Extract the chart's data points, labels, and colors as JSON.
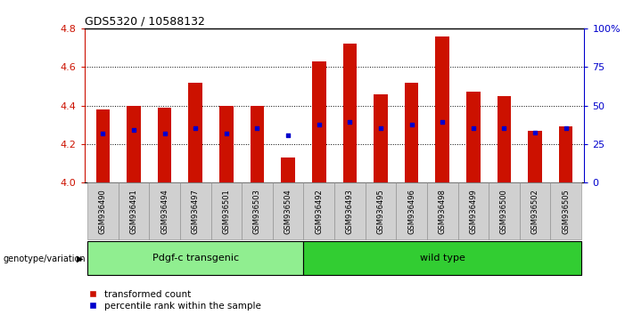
{
  "title": "GDS5320 / 10588132",
  "samples": [
    "GSM936490",
    "GSM936491",
    "GSM936494",
    "GSM936497",
    "GSM936501",
    "GSM936503",
    "GSM936504",
    "GSM936492",
    "GSM936493",
    "GSM936495",
    "GSM936496",
    "GSM936498",
    "GSM936499",
    "GSM936500",
    "GSM936502",
    "GSM936505"
  ],
  "bar_values": [
    4.38,
    4.4,
    4.39,
    4.52,
    4.4,
    4.4,
    4.13,
    4.63,
    4.72,
    4.46,
    4.52,
    4.76,
    4.47,
    4.45,
    4.27,
    4.29
  ],
  "dot_values": [
    4.255,
    4.275,
    4.255,
    4.285,
    4.255,
    4.285,
    4.245,
    4.3,
    4.315,
    4.285,
    4.3,
    4.315,
    4.285,
    4.285,
    4.26,
    4.285
  ],
  "groups": [
    {
      "label": "Pdgf-c transgenic",
      "color": "#90EE90",
      "start": 0,
      "end": 7
    },
    {
      "label": "wild type",
      "color": "#32CD32",
      "start": 7,
      "end": 16
    }
  ],
  "ylim_left": [
    4.0,
    4.8
  ],
  "ylim_right": [
    0,
    100
  ],
  "yticks_left": [
    4.0,
    4.2,
    4.4,
    4.6,
    4.8
  ],
  "yticks_right": [
    0,
    25,
    50,
    75,
    100
  ],
  "bar_color": "#CC1100",
  "dot_color": "#0000CC",
  "bar_bottom": 4.0,
  "axis_color_left": "#CC1100",
  "axis_color_right": "#0000CC",
  "genotype_label": "genotype/variation",
  "legend_items": [
    "transformed count",
    "percentile rank within the sample"
  ],
  "gridline_values": [
    4.2,
    4.4,
    4.6
  ],
  "group_colors": [
    "#90EE90",
    "#32CD32"
  ],
  "xlabel_bg": "#CCCCCC",
  "bar_width": 0.45
}
